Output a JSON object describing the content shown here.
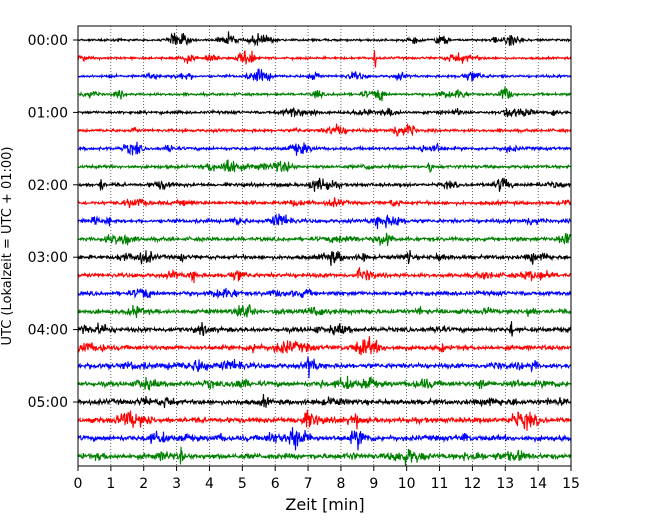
{
  "chart_data": {
    "type": "line",
    "title": "",
    "xlabel": "Zeit  [min]",
    "ylabel": "UTC (Lokalzeit = UTC + 01:00)",
    "xlim": [
      0,
      15
    ],
    "x_ticks": [
      "0",
      "1",
      "2",
      "3",
      "4",
      "5",
      "6",
      "7",
      "8",
      "9",
      "10",
      "11",
      "12",
      "13",
      "14",
      "15"
    ],
    "y_ticks": [
      "00:00",
      "01:00",
      "02:00",
      "03:00",
      "04:00",
      "05:00"
    ],
    "grid_x": true,
    "trace_colors": [
      "#000000",
      "#ff0000",
      "#0000ff",
      "#008000"
    ],
    "series": [
      {
        "start": "00:00",
        "color": "#000000"
      },
      {
        "start": "00:15",
        "color": "#ff0000"
      },
      {
        "start": "00:30",
        "color": "#0000ff"
      },
      {
        "start": "00:45",
        "color": "#008000"
      },
      {
        "start": "01:00",
        "color": "#000000"
      },
      {
        "start": "01:15",
        "color": "#ff0000"
      },
      {
        "start": "01:30",
        "color": "#0000ff"
      },
      {
        "start": "01:45",
        "color": "#008000"
      },
      {
        "start": "02:00",
        "color": "#000000"
      },
      {
        "start": "02:15",
        "color": "#ff0000"
      },
      {
        "start": "02:30",
        "color": "#0000ff"
      },
      {
        "start": "02:45",
        "color": "#008000"
      },
      {
        "start": "03:00",
        "color": "#000000"
      },
      {
        "start": "03:15",
        "color": "#ff0000"
      },
      {
        "start": "03:30",
        "color": "#0000ff"
      },
      {
        "start": "03:45",
        "color": "#008000"
      },
      {
        "start": "04:00",
        "color": "#000000"
      },
      {
        "start": "04:15",
        "color": "#ff0000"
      },
      {
        "start": "04:30",
        "color": "#0000ff"
      },
      {
        "start": "04:45",
        "color": "#008000"
      },
      {
        "start": "05:00",
        "color": "#000000"
      },
      {
        "start": "05:15",
        "color": "#ff0000"
      },
      {
        "start": "05:30",
        "color": "#0000ff"
      },
      {
        "start": "05:45",
        "color": "#008000"
      }
    ]
  }
}
